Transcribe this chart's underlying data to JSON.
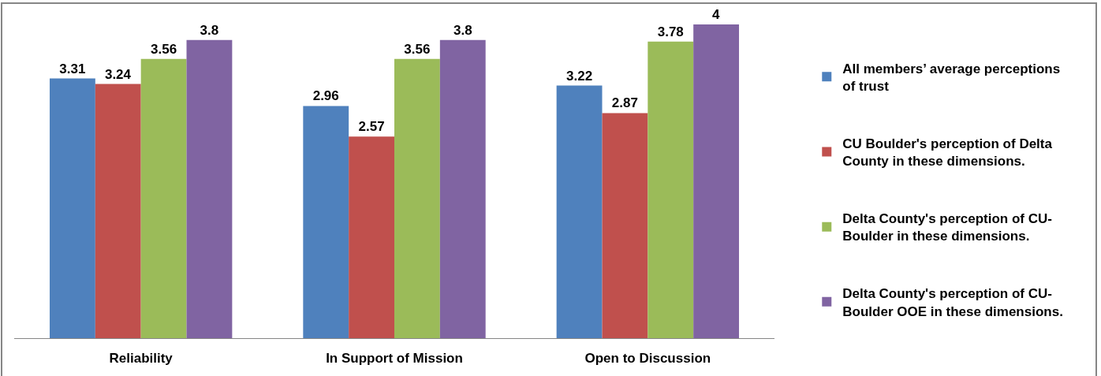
{
  "chart_data": {
    "type": "bar",
    "categories": [
      "Reliability",
      "In Support of Mission",
      "Open to Discussion"
    ],
    "series": [
      {
        "name": "All members’ average perceptions of trust",
        "color": "#4f81bd",
        "values": [
          3.31,
          2.96,
          3.22
        ]
      },
      {
        "name": "CU Boulder's perception of Delta County in these dimensions.",
        "color": "#c0504d",
        "values": [
          3.24,
          2.57,
          2.87
        ]
      },
      {
        "name": "Delta County's perception of CU-Boulder in these dimensions.",
        "color": "#9bbb59",
        "values": [
          3.56,
          3.56,
          3.78
        ]
      },
      {
        "name": "Delta County's perception of CU-Boulder OOE in these dimensions.",
        "color": "#8064a2",
        "values": [
          3.8,
          3.8,
          4
        ]
      }
    ],
    "data_labels": true,
    "tick_labels": "x",
    "legend": "right"
  }
}
